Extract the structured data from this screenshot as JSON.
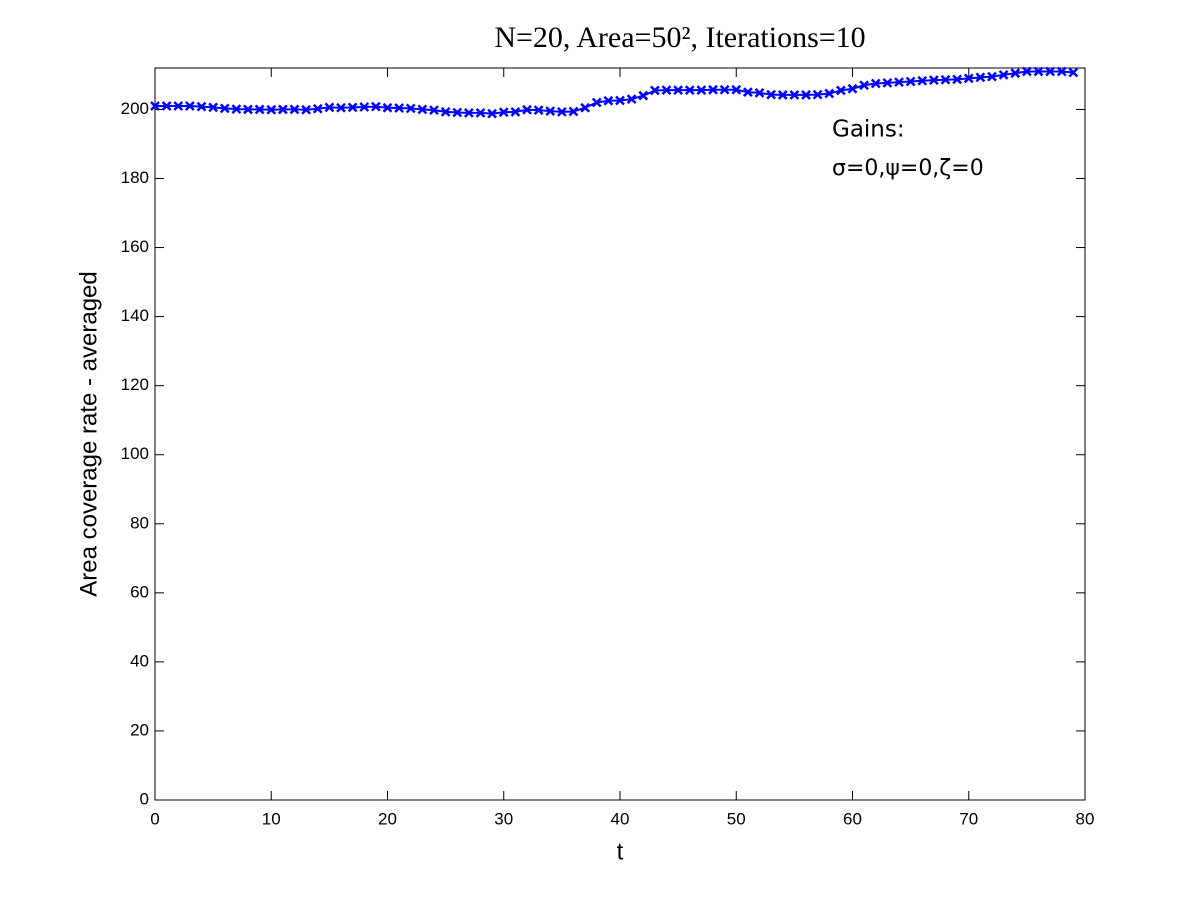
{
  "chart_data": {
    "type": "line",
    "title": "N=20, Area=50², Iterations=10",
    "x_label": "t",
    "y_label": "Area coverage rate - averaged",
    "annotations": [
      "Gains:",
      "σ=0,ψ=0,ζ=0"
    ],
    "x": [
      0,
      1,
      2,
      3,
      4,
      5,
      6,
      7,
      8,
      9,
      10,
      11,
      12,
      13,
      14,
      15,
      16,
      17,
      18,
      19,
      20,
      21,
      22,
      23,
      24,
      25,
      26,
      27,
      28,
      29,
      30,
      31,
      32,
      33,
      34,
      35,
      36,
      37,
      38,
      39,
      40,
      41,
      42,
      43,
      44,
      45,
      46,
      47,
      48,
      49,
      50,
      51,
      52,
      53,
      54,
      55,
      56,
      57,
      58,
      59,
      60,
      61,
      62,
      63,
      64,
      65,
      66,
      67,
      68,
      69,
      70,
      71,
      72,
      73,
      74,
      75,
      76,
      77,
      78,
      79
    ],
    "series": [
      {
        "color": "#0000ff",
        "marker": "x",
        "values": [
          201,
          201,
          201,
          201,
          200.8,
          200.6,
          200.3,
          200.1,
          200,
          200,
          199.9,
          200,
          200,
          199.9,
          200.2,
          200.6,
          200.5,
          200.6,
          200.7,
          200.8,
          200.5,
          200.4,
          200.3,
          200,
          199.8,
          199.3,
          199.1,
          199,
          199,
          198.8,
          199.2,
          199.3,
          199.9,
          199.8,
          199.5,
          199.3,
          199.4,
          200.5,
          202,
          202.5,
          202.6,
          203,
          204,
          205.5,
          205.6,
          205.6,
          205.6,
          205.6,
          205.7,
          205.7,
          205.7,
          205,
          204.8,
          204.3,
          204.2,
          204.2,
          204.2,
          204.3,
          204.6,
          205.5,
          206,
          207,
          207.5,
          207.7,
          207.9,
          208.1,
          208.3,
          208.5,
          208.6,
          208.7,
          209,
          209.3,
          209.5,
          210,
          210.5,
          211,
          211,
          211,
          211,
          210.7
        ]
      }
    ],
    "xlim": [
      0,
      80
    ],
    "xticks": [
      0,
      10,
      20,
      30,
      40,
      50,
      60,
      70,
      80
    ],
    "ylim": [
      0,
      212
    ],
    "yticks": [
      0,
      20,
      40,
      60,
      80,
      100,
      120,
      140,
      160,
      180,
      200
    ],
    "grid": false
  }
}
